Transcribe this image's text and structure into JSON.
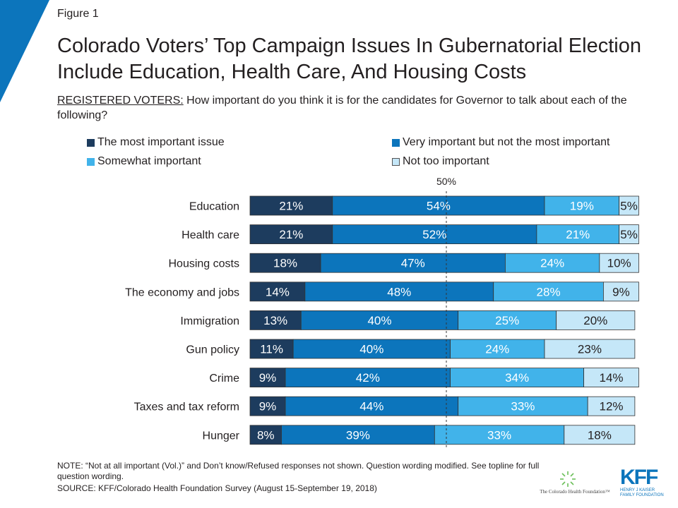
{
  "figure_label": "Figure 1",
  "title": "Colorado Voters’ Top Campaign Issues In Gubernatorial Election Include Education, Health Care, And Housing Costs",
  "question_lead": "REGISTERED VOTERS:",
  "question_text": " How important do you think it is for the candidates for Governor to talk about each of the following?",
  "note": "NOTE: “Not at all important (Vol.)” and Don’t know/Refused responses not shown. Question wording modified. See topline for full question wording.",
  "source": "SOURCE: KFF/Colorado Health Foundation Survey (August 15-September 19, 2018)",
  "logos": {
    "chf": "The Colorado Health Foundation™",
    "kff": "KFF",
    "kff_sub_1": "HENRY J KAISER",
    "kff_sub_2": "FAMILY FOUNDATION"
  },
  "colors": {
    "most_important": "#1d3c5e",
    "very_important": "#0c75bc",
    "somewhat_important": "#41b3ea",
    "not_too_important": "#c5e7f8",
    "accent": "#0c75bc"
  },
  "chart_data": {
    "type": "bar",
    "orientation": "horizontal",
    "stacked": true,
    "categories": [
      "Education",
      "Health care",
      "Housing costs",
      "The economy and jobs",
      "Immigration",
      "Gun policy",
      "Crime",
      "Taxes and tax reform",
      "Hunger"
    ],
    "series": [
      {
        "name": "The most important issue",
        "values": [
          21,
          21,
          18,
          14,
          13,
          11,
          9,
          9,
          8
        ]
      },
      {
        "name": "Very important but not the most important",
        "values": [
          54,
          52,
          47,
          48,
          40,
          40,
          42,
          44,
          39
        ]
      },
      {
        "name": "Somewhat important",
        "values": [
          19,
          21,
          24,
          28,
          25,
          24,
          34,
          33,
          33
        ]
      },
      {
        "name": "Not too important",
        "values": [
          5,
          5,
          10,
          9,
          20,
          23,
          14,
          12,
          18
        ]
      }
    ],
    "reference_line": {
      "value": 50,
      "label": "50%",
      "style": "dashed"
    },
    "value_format": "percent",
    "legend": "top, two columns",
    "xlim": [
      0,
      100
    ],
    "grid": false
  }
}
